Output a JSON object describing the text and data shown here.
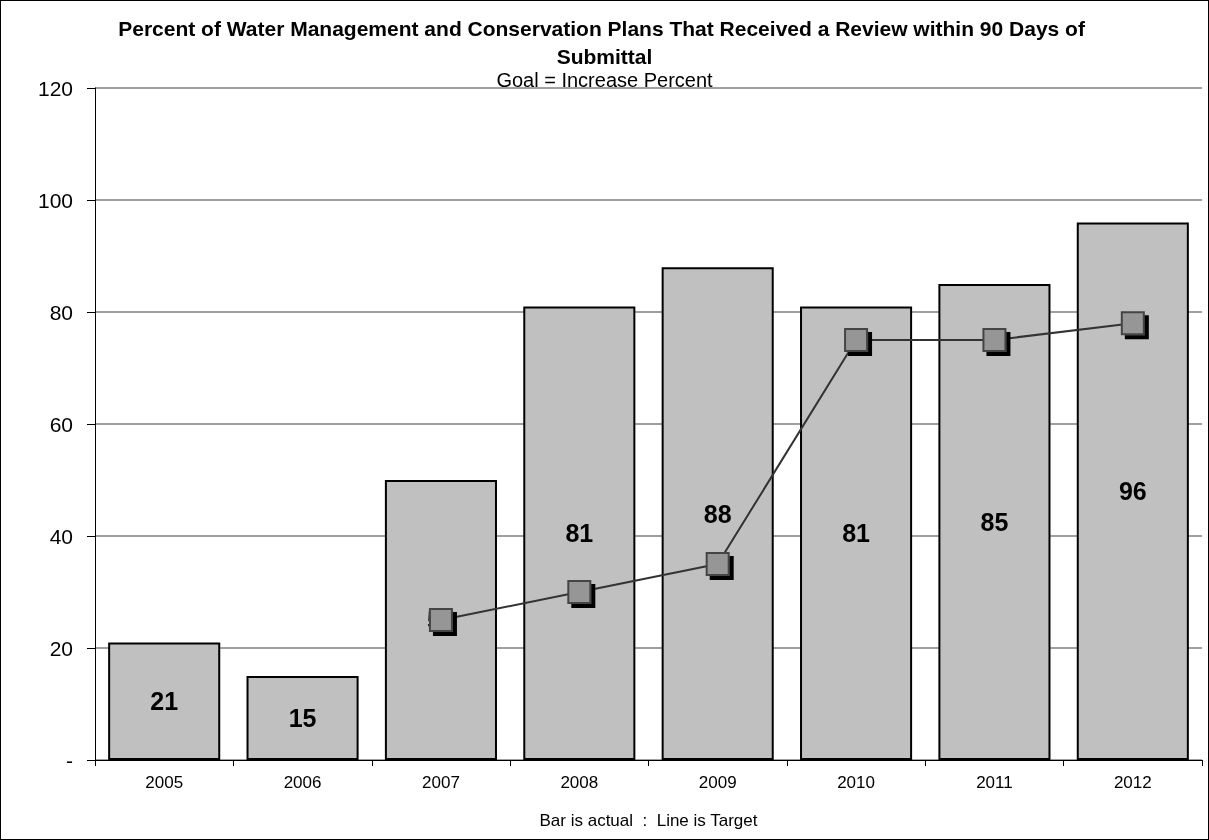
{
  "chart_data": {
    "type": "bar",
    "title": "Percent of Water Management and Conservation Plans That Received a Review within 90 Days of Submittal",
    "subtitle": "Goal = Increase Percent",
    "xlabel": "Bar is actual  :  Line is Target",
    "categories": [
      "2005",
      "2006",
      "2007",
      "2008",
      "2009",
      "2010",
      "2011",
      "2012"
    ],
    "series": [
      {
        "color": "#c0c0c0",
        "values": [
          21,
          15,
          50,
          81,
          88,
          81,
          85,
          96
        ],
        "data_labels": true
      },
      {
        "type": "line",
        "color": "#969696",
        "values": [
          null,
          null,
          25,
          30,
          35,
          75,
          75,
          78
        ],
        "marker": "square",
        "line_style": "solid"
      }
    ],
    "ylim": [
      0,
      120
    ],
    "yticks": [
      {
        "value": 0,
        "label": "-"
      },
      20,
      40,
      60,
      80,
      100,
      120
    ],
    "grid": "y"
  }
}
